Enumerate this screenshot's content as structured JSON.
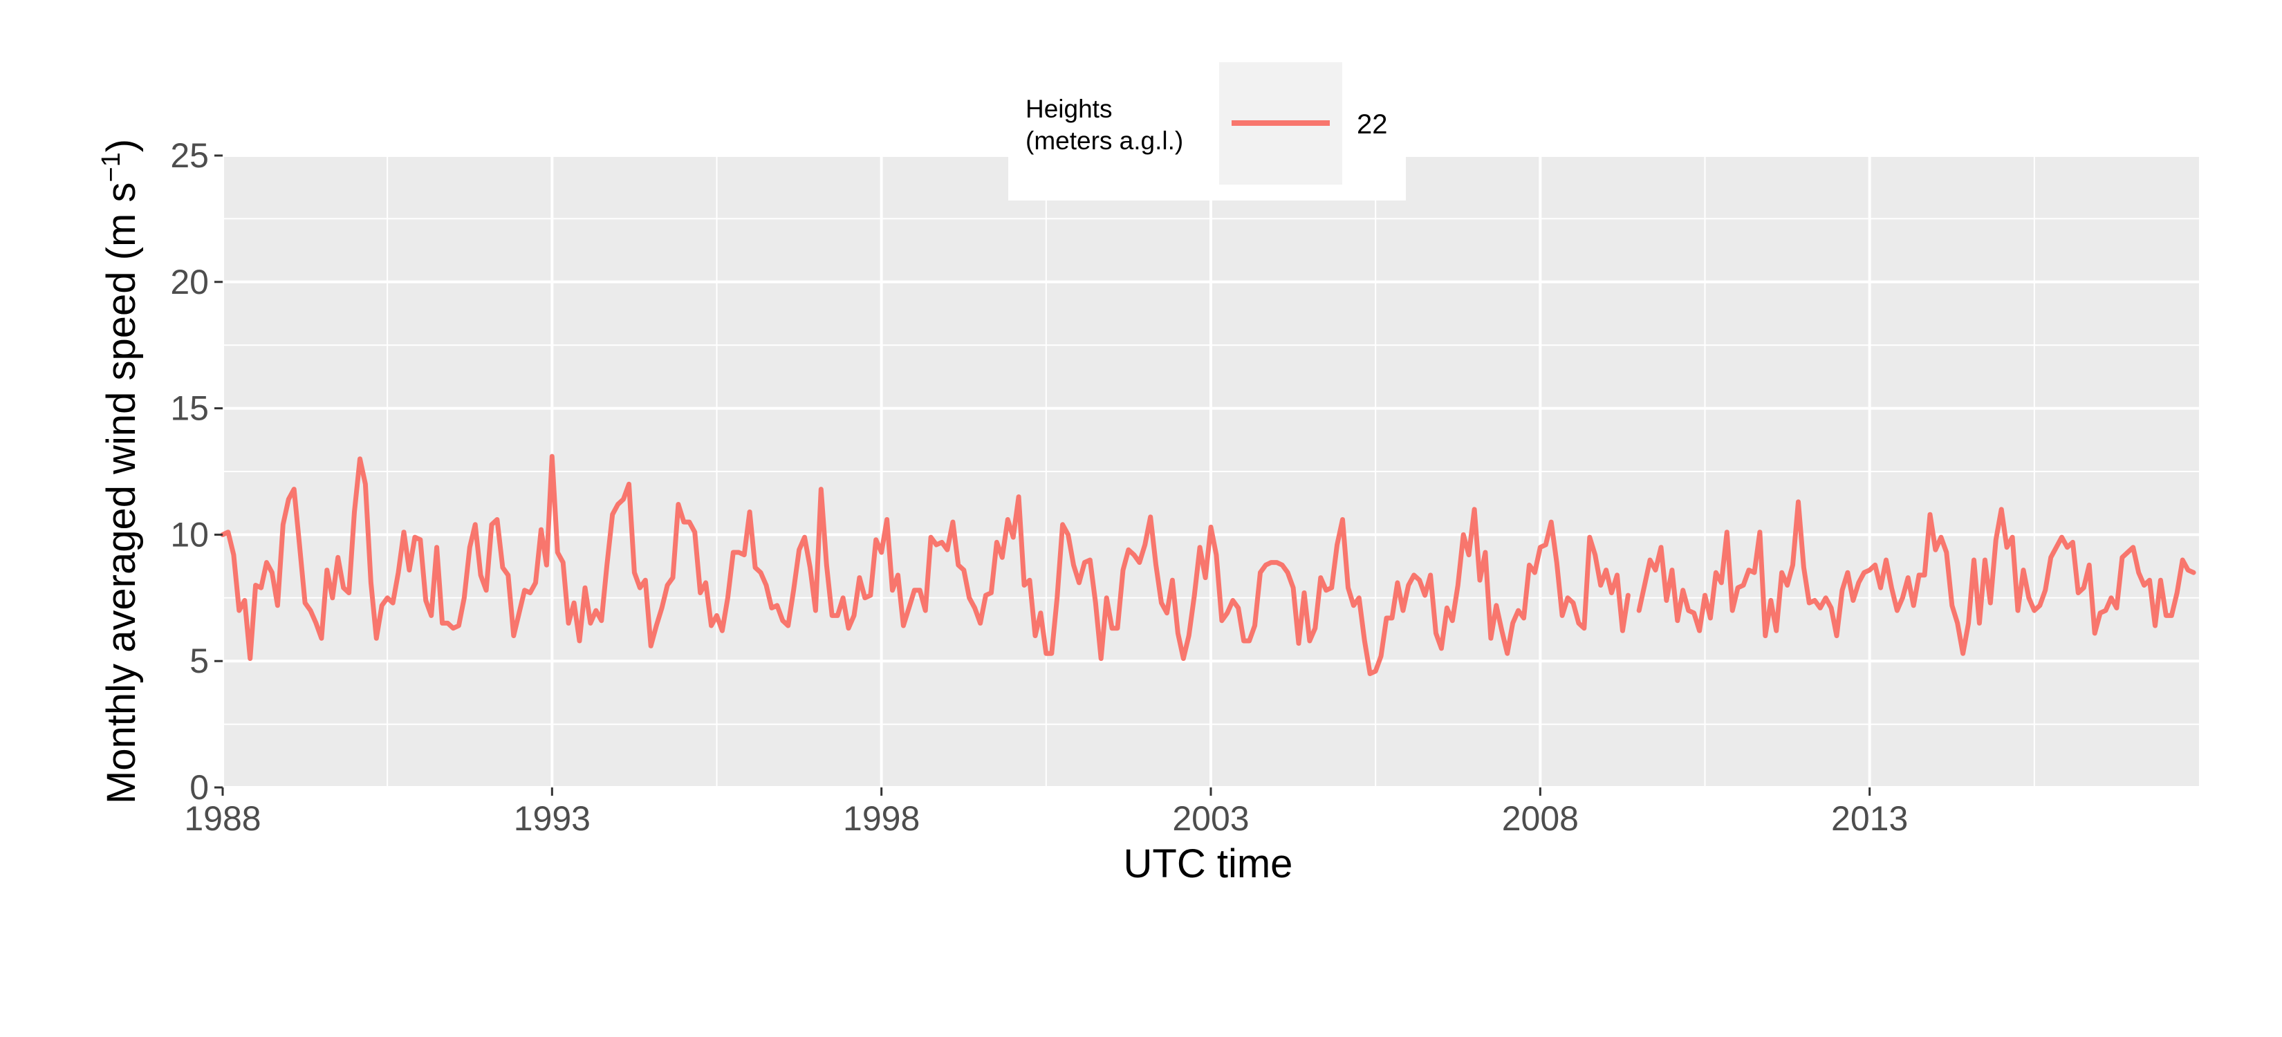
{
  "chart_data": {
    "type": "line",
    "title": "",
    "xlabel": "UTC time",
    "ylabel": "Monthly averaged wind speed (m s",
    "ylabel_superscript": "−1",
    "ylabel_close": ")",
    "xlim": [
      1988.0,
      2018.0
    ],
    "ylim": [
      0,
      25
    ],
    "x_ticks": [
      1988,
      1993,
      1998,
      2003,
      2008,
      2013
    ],
    "x_tick_labels": [
      "1988",
      "1993",
      "1998",
      "2003",
      "2008",
      "2013"
    ],
    "y_ticks": [
      0,
      5,
      10,
      15,
      20,
      25
    ],
    "y_tick_labels": [
      "0",
      "5",
      "10",
      "15",
      "20",
      "25"
    ],
    "grid": true,
    "legend": {
      "title_line1": "Heights",
      "title_line2": "(meters a.g.l.)",
      "placement": "top-center"
    },
    "series": [
      {
        "name": "22",
        "color": "#F8766D",
        "x_start": 1988.0,
        "x_step_months": 1,
        "values": [
          10.0,
          10.1,
          9.2,
          7.0,
          7.4,
          5.1,
          8.0,
          7.9,
          8.9,
          8.5,
          7.2,
          10.4,
          11.4,
          11.8,
          9.6,
          7.3,
          7.0,
          6.5,
          5.9,
          8.6,
          7.5,
          9.1,
          7.9,
          7.7,
          10.9,
          13.0,
          12.0,
          8.1,
          5.9,
          7.2,
          7.5,
          7.3,
          8.5,
          10.1,
          8.6,
          9.9,
          9.8,
          7.4,
          6.8,
          9.5,
          6.5,
          6.5,
          6.3,
          6.4,
          7.5,
          9.5,
          10.4,
          8.4,
          7.8,
          10.4,
          10.6,
          8.7,
          8.4,
          6.0,
          6.9,
          7.8,
          7.7,
          8.1,
          10.2,
          8.8,
          13.1,
          9.3,
          8.9,
          6.5,
          7.3,
          5.8,
          7.9,
          6.5,
          7.0,
          6.6,
          8.8,
          10.8,
          11.2,
          11.4,
          12.0,
          8.5,
          7.9,
          8.2,
          5.6,
          6.4,
          7.1,
          8.0,
          8.3,
          11.2,
          10.5,
          10.5,
          10.1,
          7.7,
          8.1,
          6.4,
          6.8,
          6.2,
          7.5,
          9.3,
          9.3,
          9.2,
          10.9,
          8.7,
          8.5,
          8.0,
          7.1,
          7.2,
          6.6,
          6.4,
          7.8,
          9.4,
          9.9,
          8.7,
          7.0,
          11.8,
          8.8,
          6.8,
          6.8,
          7.5,
          6.3,
          6.8,
          8.3,
          7.5,
          7.6,
          9.8,
          9.3,
          10.6,
          7.8,
          8.4,
          6.4,
          7.1,
          7.8,
          7.8,
          7.0,
          9.9,
          9.6,
          9.7,
          9.4,
          10.5,
          8.8,
          8.6,
          7.5,
          7.1,
          6.5,
          7.6,
          7.7,
          9.7,
          9.1,
          10.6,
          9.9,
          11.5,
          8.0,
          8.2,
          6.0,
          6.9,
          5.3,
          5.3,
          7.5,
          10.4,
          10.0,
          8.8,
          8.1,
          8.9,
          9.0,
          7.3,
          5.1,
          7.5,
          6.3,
          6.3,
          8.6,
          9.4,
          9.2,
          8.9,
          9.6,
          10.7,
          8.8,
          7.3,
          6.9,
          8.2,
          6.1,
          5.1,
          6.0,
          7.6,
          9.5,
          8.3,
          10.3,
          9.2,
          6.6,
          6.9,
          7.4,
          7.1,
          5.8,
          5.8,
          6.4,
          8.5,
          8.8,
          8.9,
          8.9,
          8.8,
          8.5,
          7.9,
          5.7,
          7.7,
          5.8,
          6.3,
          8.3,
          7.8,
          7.9,
          9.6,
          10.6,
          7.9,
          7.2,
          7.5,
          5.8,
          4.5,
          4.6,
          5.2,
          6.7,
          6.7,
          8.1,
          7.0,
          8.0,
          8.4,
          8.2,
          7.6,
          8.4,
          6.1,
          5.5,
          7.1,
          6.6,
          8.0,
          10.0,
          9.2,
          11.0,
          8.2,
          9.3,
          5.9,
          7.2,
          6.2,
          5.3,
          6.5,
          7.0,
          6.7,
          8.8,
          8.5,
          9.5,
          9.6,
          10.5,
          8.9,
          6.8,
          7.5,
          7.3,
          6.5,
          6.3,
          9.9,
          9.2,
          8.0,
          8.6,
          7.7,
          8.4,
          6.2,
          7.6,
          null,
          7.0,
          8.0,
          9.0,
          8.6,
          9.5,
          7.4,
          8.6,
          6.6,
          7.8,
          7.0,
          6.9,
          6.2,
          7.6,
          6.7,
          8.5,
          8.1,
          10.1,
          7.0,
          7.9,
          8.0,
          8.6,
          8.5,
          10.1,
          6.0,
          7.4,
          6.2,
          8.5,
          8.0,
          8.8,
          11.3,
          8.7,
          7.3,
          7.4,
          7.1,
          7.5,
          7.1,
          6.0,
          7.8,
          8.5,
          7.4,
          8.1,
          8.5,
          8.6,
          8.8,
          7.9,
          9.0,
          7.9,
          7.0,
          7.5,
          8.3,
          7.2,
          8.4,
          8.4,
          10.8,
          9.4,
          9.9,
          9.3,
          7.2,
          6.5,
          5.3,
          6.5,
          9.0,
          6.5,
          9.0,
          7.3,
          9.8,
          11.0,
          9.5,
          9.9,
          7.0,
          8.6,
          7.5,
          7.0,
          7.2,
          7.8,
          9.1,
          9.5,
          9.9,
          9.5,
          9.7,
          7.7,
          7.9,
          8.8,
          6.1,
          6.9,
          7.0,
          7.5,
          7.1,
          9.1,
          9.3,
          9.5,
          8.5,
          8.0,
          8.2,
          6.4,
          8.2,
          6.8,
          6.8,
          7.7,
          9.0,
          8.6,
          8.5
        ]
      }
    ]
  }
}
